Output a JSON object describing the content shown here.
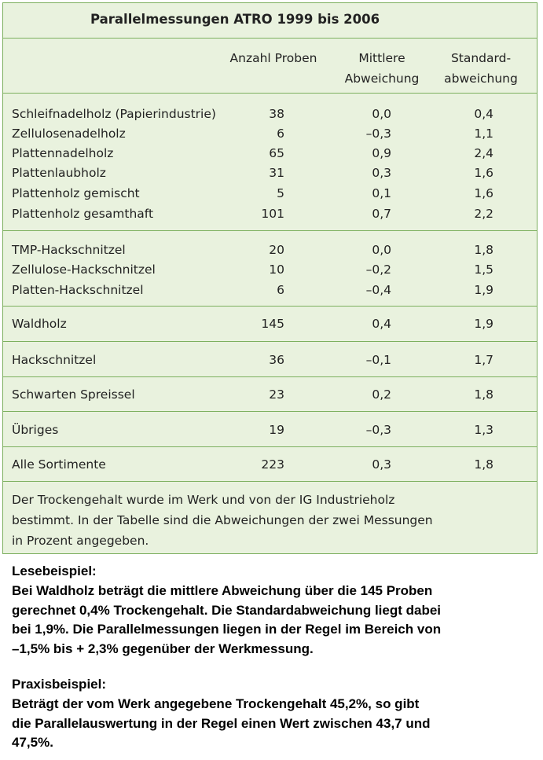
{
  "table": {
    "title": "Parallelmessungen ATRO 1999 bis 2006",
    "header": [
      [
        "Anzahl Proben"
      ],
      [
        "Mittlere",
        "Abweichung"
      ],
      [
        "Standard-",
        "abweichung"
      ]
    ],
    "groups": [
      [
        [
          "Schleifnadelholz (Papierindustrie)",
          "38",
          "0,0",
          "0,4"
        ],
        [
          "Zellulosenadelholz",
          "6",
          "–0,3",
          "1,1"
        ],
        [
          "Plattennadelholz",
          "65",
          "0,9",
          "2,4"
        ],
        [
          "Plattenlaubholz",
          "31",
          "0,3",
          "1,6"
        ],
        [
          "Plattenholz gemischt",
          "5",
          "0,1",
          "1,6"
        ],
        [
          "Plattenholz gesamthaft",
          "101",
          "0,7",
          "2,2"
        ]
      ],
      [
        [
          "TMP-Hackschnitzel",
          "20",
          "0,0",
          "1,8"
        ],
        [
          "Zellulose-Hackschnitzel",
          "10",
          "–0,2",
          "1,5"
        ],
        [
          "Platten-Hackschnitzel",
          "6",
          "–0,4",
          "1,9"
        ]
      ],
      [
        [
          "Waldholz",
          "145",
          "0,4",
          "1,9"
        ]
      ],
      [
        [
          "Hackschnitzel",
          "36",
          "–0,1",
          "1,7"
        ]
      ],
      [
        [
          "Schwarten Spreissel",
          "23",
          "0,2",
          "1,8"
        ]
      ],
      [
        [
          "Übriges",
          "19",
          "–0,3",
          "1,3"
        ]
      ],
      [
        [
          "Alle Sortimente",
          "223",
          "0,3",
          "1,8"
        ]
      ]
    ],
    "footnote": [
      "Der Trockengehalt wurde im Werk und von der IG Industrieholz",
      "bestimmt. In der Tabelle sind die Abweichungen der zwei Messungen",
      "in Prozent angegeben."
    ]
  },
  "examples": [
    {
      "heading": "Lesebeispiel:",
      "lines": [
        "Bei Waldholz beträgt die mittlere Abweichung über die 145 Proben",
        "gerechnet 0,4% Trockengehalt. Die Standardabweichung liegt dabei",
        "bei 1,9%. Die Parallelmessungen liegen in der Regel im Bereich von",
        "–1,5% bis + 2,3% gegenüber der Werkmessung."
      ]
    },
    {
      "heading": "Praxisbeispiel:",
      "lines": [
        "Beträgt der vom Werk angegebene Trockengehalt 45,2%, so gibt",
        "die Parallelauswertung in der Regel einen Wert zwischen 43,7 und",
        "47,5%."
      ]
    }
  ]
}
